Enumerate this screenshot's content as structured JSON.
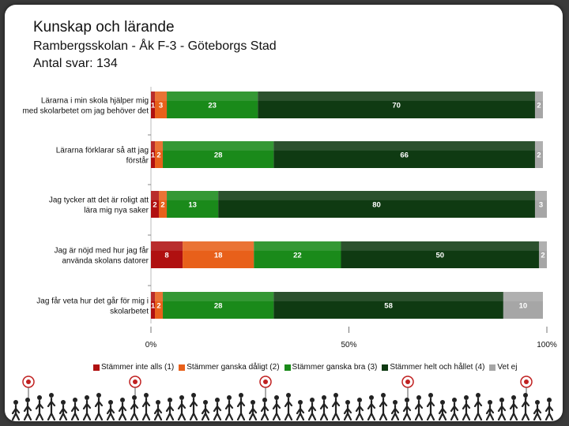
{
  "header": {
    "title": "Kunskap och lärande",
    "subtitle": "Rambergsskolan - Åk F-3 - Göteborgs Stad",
    "respondents": "Antal svar: 134"
  },
  "chart_data": {
    "type": "bar",
    "orientation": "horizontal",
    "stacked": true,
    "percent_scale": true,
    "categories": [
      "Lärarna i min skola hjälper mig med skolarbetet om jag behöver det",
      "Lärarna förklarar så att jag förstår",
      "Jag tycker att det är roligt att lära mig nya saker",
      "Jag är nöjd med hur jag får använda skolans datorer",
      "Jag får veta hur det går för mig i skolarbetet"
    ],
    "series": [
      {
        "name": "Stämmer inte alls (1)",
        "color": "#b01010",
        "values": [
          1,
          1,
          2,
          8,
          1
        ]
      },
      {
        "name": "Stämmer ganska dåligt (2)",
        "color": "#e8601a",
        "values": [
          3,
          2,
          2,
          18,
          2
        ]
      },
      {
        "name": "Stämmer ganska bra (3)",
        "color": "#1a8a1a",
        "values": [
          23,
          28,
          13,
          22,
          28
        ]
      },
      {
        "name": "Stämmer helt och hållet (4)",
        "color": "#0f3a12",
        "values": [
          70,
          66,
          80,
          50,
          58
        ]
      },
      {
        "name": "Vet ej",
        "color": "#a6a6a6",
        "values": [
          2,
          2,
          3,
          2,
          10
        ]
      }
    ],
    "xticks": [
      "0%",
      "50%",
      "100%"
    ],
    "xlim": [
      0,
      100
    ],
    "legend": "bottom"
  }
}
